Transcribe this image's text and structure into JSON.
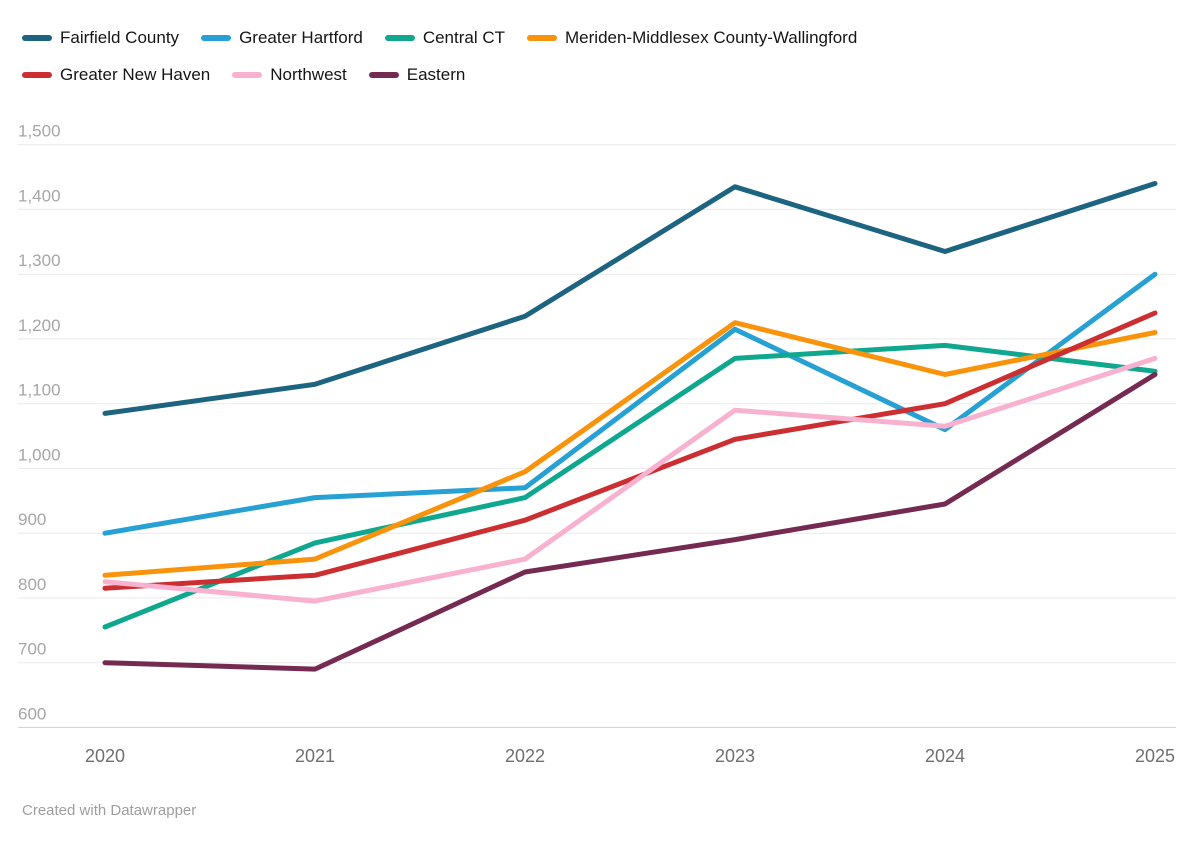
{
  "footer": {
    "credit": "Created with Datawrapper"
  },
  "chart_data": {
    "type": "line",
    "title": "",
    "xlabel": "",
    "ylabel": "",
    "x": [
      2020,
      2021,
      2022,
      2023,
      2024,
      2025
    ],
    "x_labels": [
      "2020",
      "2021",
      "2022",
      "2023",
      "2024",
      "2025"
    ],
    "ylim": [
      600,
      1500
    ],
    "ytick_step": 100,
    "yticks": [
      600,
      700,
      800,
      900,
      1000,
      1100,
      1200,
      1300,
      1400,
      1500
    ],
    "ytick_labels": [
      "600",
      "700",
      "800",
      "900",
      "1,000",
      "1,100",
      "1,200",
      "1,300",
      "1,400",
      "1,500"
    ],
    "grid": "horizontal",
    "legend_position": "top-left, two rows",
    "legend_rows": [
      4,
      3
    ],
    "series": [
      {
        "name": "Fairfield County",
        "color": "#1d6480",
        "values": [
          1085,
          1130,
          1235,
          1435,
          1335,
          1440
        ]
      },
      {
        "name": "Greater Hartford",
        "color": "#27a0d4",
        "values": [
          900,
          955,
          970,
          1215,
          1060,
          1300
        ]
      },
      {
        "name": "Central CT",
        "color": "#10a78f",
        "values": [
          755,
          885,
          955,
          1170,
          1190,
          1150
        ]
      },
      {
        "name": "Meriden-Middlesex County-Wallingford",
        "color": "#f8930b",
        "values": [
          835,
          860,
          995,
          1225,
          1145,
          1210
        ]
      },
      {
        "name": "Greater New Haven",
        "color": "#cc2f31",
        "values": [
          815,
          835,
          920,
          1045,
          1100,
          1240
        ]
      },
      {
        "name": "Northwest",
        "color": "#f8b1cf",
        "values": [
          825,
          795,
          860,
          1090,
          1065,
          1170
        ]
      },
      {
        "name": "Eastern",
        "color": "#752b51",
        "values": [
          700,
          690,
          840,
          890,
          945,
          1145
        ]
      }
    ],
    "style": {
      "grid_color": "#e9e9e9",
      "baseline_color": "#cfcfcf",
      "ytick_label_color": "#a6a6a6",
      "xtick_label_color": "#6f6f6f",
      "line_width": 5
    }
  }
}
